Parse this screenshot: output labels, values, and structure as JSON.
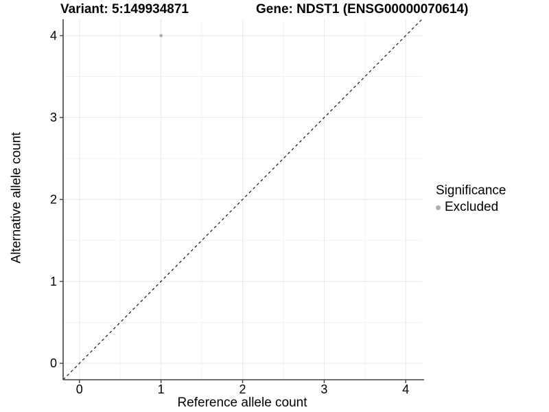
{
  "chart_data": {
    "type": "scatter",
    "title_left": "Variant: 5:149934871",
    "title_right": "Gene: NDST1 (ENSG00000070614)",
    "xlabel": "Reference allele count",
    "ylabel": "Alternative allele count",
    "xlim": [
      -0.2,
      4.2
    ],
    "ylim": [
      -0.2,
      4.2
    ],
    "x_ticks": [
      0,
      1,
      2,
      3,
      4
    ],
    "y_ticks": [
      0,
      1,
      2,
      3,
      4
    ],
    "x_minor": [
      0.5,
      1.5,
      2.5,
      3.5
    ],
    "y_minor": [
      0.5,
      1.5,
      2.5,
      3.5
    ],
    "grid": "on",
    "points": [
      {
        "x": 1,
        "y": 4,
        "significance": "Excluded"
      }
    ],
    "identity_line": {
      "slope": 1,
      "intercept": 0,
      "style": "dashed"
    },
    "legend": {
      "title": "Significance",
      "position": "right",
      "entries": [
        {
          "label": "Excluded",
          "color": "#b0b0b0"
        }
      ]
    },
    "colors": {
      "point": "#b0b0b0",
      "grid_major": "#e8e8e8",
      "grid_minor": "#f2f2f2",
      "axis_line": "#404040",
      "dashed_line": "#000000",
      "text": "#000000"
    }
  }
}
